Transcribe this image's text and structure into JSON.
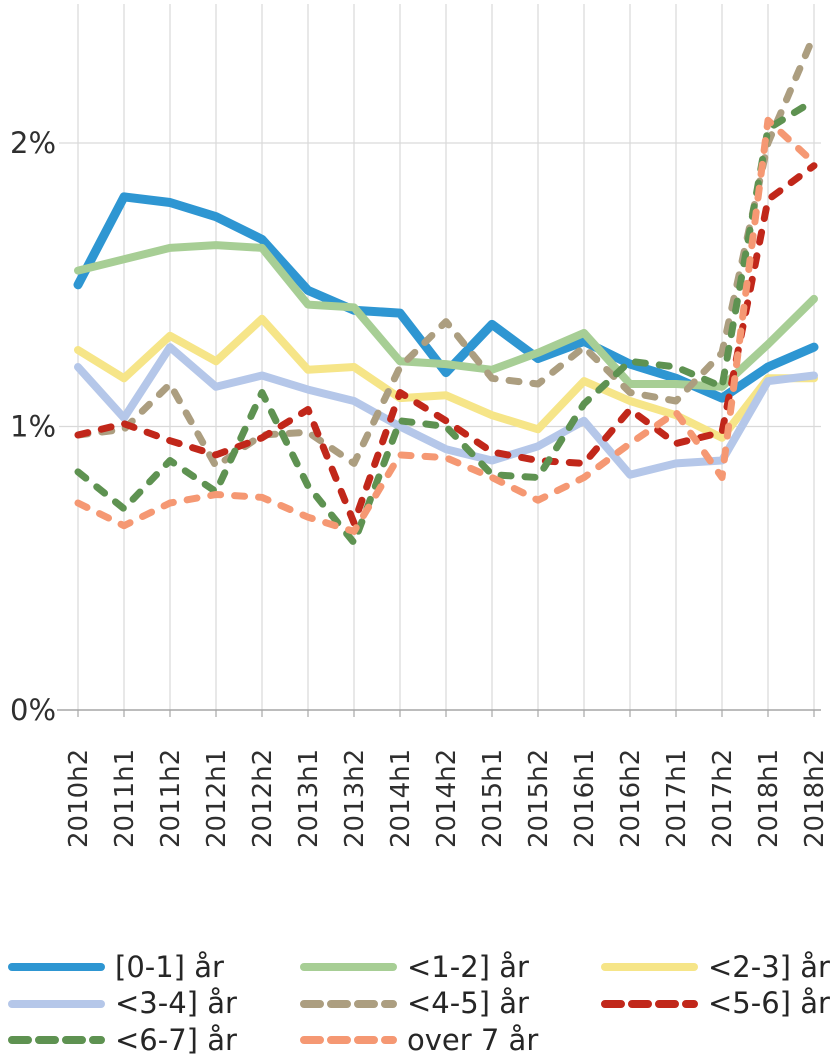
{
  "page": {
    "background_color": "#ffffff",
    "text_color": "#333333",
    "gridline_color": "#d9d9d9",
    "axis_line_color": "#a6a6a6"
  },
  "chart_data": {
    "type": "line",
    "title": "",
    "xlabel": "",
    "ylabel": "",
    "grid": "on",
    "legend_position": "bottom",
    "legend_columns": 3,
    "categories": [
      "2010h2",
      "2011h1",
      "2011h2",
      "2012h1",
      "2012h2",
      "2013h1",
      "2013h2",
      "2014h1",
      "2014h2",
      "2015h1",
      "2015h2",
      "2016h1",
      "2016h2",
      "2017h1",
      "2017h2",
      "2018h1",
      "2018h2"
    ],
    "y_axis": {
      "unit": "%",
      "range": [
        0,
        2.5
      ],
      "ticks": [
        {
          "label": "0%",
          "value": 0
        },
        {
          "label": "1%",
          "value": 1
        },
        {
          "label": "2%",
          "value": 2
        }
      ]
    },
    "series": [
      {
        "name": "[0-1] år",
        "color": "#2E96D2",
        "style": "solid",
        "width": 9,
        "values": [
          1.5,
          1.81,
          1.79,
          1.74,
          1.66,
          1.48,
          1.41,
          1.4,
          1.19,
          1.36,
          1.24,
          1.3,
          1.22,
          1.17,
          1.1,
          1.21,
          1.28
        ]
      },
      {
        "name": "<1-2] år",
        "color": "#A7CE95",
        "style": "solid",
        "width": 8,
        "values": [
          1.55,
          1.59,
          1.63,
          1.64,
          1.63,
          1.43,
          1.42,
          1.23,
          1.22,
          1.2,
          1.26,
          1.33,
          1.15,
          1.15,
          1.14,
          1.29,
          1.45
        ]
      },
      {
        "name": "<2-3] år",
        "color": "#F6E588",
        "style": "solid",
        "width": 8,
        "values": [
          1.27,
          1.17,
          1.32,
          1.23,
          1.38,
          1.2,
          1.21,
          1.1,
          1.11,
          1.04,
          0.99,
          1.16,
          1.09,
          1.04,
          0.96,
          1.17,
          1.17
        ]
      },
      {
        "name": "<3-4] år",
        "color": "#B5C7E9",
        "style": "solid",
        "width": 8,
        "values": [
          1.21,
          1.03,
          1.28,
          1.14,
          1.18,
          1.13,
          1.09,
          1.0,
          0.92,
          0.88,
          0.93,
          1.02,
          0.83,
          0.87,
          0.88,
          1.16,
          1.18
        ]
      },
      {
        "name": "<4-5] år",
        "color": "#AC9E80",
        "style": "dashed",
        "width": 7,
        "values": [
          0.97,
          0.99,
          1.15,
          0.86,
          0.97,
          0.98,
          0.87,
          1.21,
          1.37,
          1.17,
          1.15,
          1.28,
          1.12,
          1.09,
          1.26,
          2.0,
          2.38
        ]
      },
      {
        "name": "<5-6] år",
        "color": "#C1271A",
        "style": "dashed",
        "width": 7,
        "values": [
          0.97,
          1.01,
          0.95,
          0.9,
          0.96,
          1.06,
          0.66,
          1.12,
          1.02,
          0.91,
          0.88,
          0.87,
          1.06,
          0.94,
          0.98,
          1.8,
          1.92
        ]
      },
      {
        "name": "<6-7] år",
        "color": "#5E9251",
        "style": "dashed",
        "width": 7,
        "values": [
          0.84,
          0.71,
          0.88,
          0.77,
          1.12,
          0.79,
          0.59,
          1.02,
          1.0,
          0.83,
          0.82,
          1.08,
          1.23,
          1.21,
          1.14,
          2.05,
          2.15
        ]
      },
      {
        "name": "over 7 år",
        "color": "#F59873",
        "style": "dashed",
        "width": 7,
        "values": [
          0.73,
          0.65,
          0.73,
          0.76,
          0.75,
          0.68,
          0.63,
          0.9,
          0.89,
          0.82,
          0.74,
          0.82,
          0.94,
          1.05,
          0.82,
          2.08,
          1.93
        ]
      }
    ]
  }
}
